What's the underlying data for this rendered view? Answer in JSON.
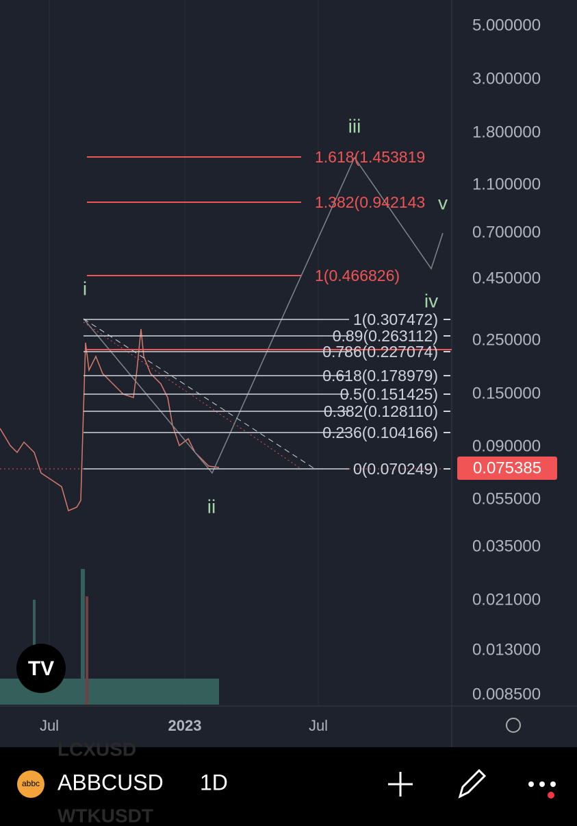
{
  "price_axis": {
    "labels": [
      "5.000000",
      "3.000000",
      "1.800000",
      "1.100000",
      "0.700000",
      "0.450000",
      "0.250000",
      "0.150000",
      "0.090000",
      "0.055000",
      "0.035000",
      "0.021000",
      "0.013000",
      "0.008500"
    ],
    "last_price": "0.075385"
  },
  "time_axis": {
    "labels": [
      "Jul",
      "2023",
      "Jul"
    ]
  },
  "wave_labels": [
    "i",
    "ii",
    "iii",
    "iv",
    "v"
  ],
  "fib_extension": {
    "levels": [
      "1.618(1.453819",
      "1.382(0.942143",
      "1(0.466826)"
    ]
  },
  "fib_retracement": {
    "levels": [
      "1(0.307472)",
      "0.89(0.263112)",
      "0.786(0.227074)",
      "0.618(0.178979)",
      "0.5(0.151425)",
      "0.382(0.128110)",
      "0.236(0.104166)",
      "0(0.070249)"
    ]
  },
  "watchlist_ghost": [
    "LCXUSD",
    "WTKUSDT"
  ],
  "toolbar": {
    "logo": "abbc",
    "symbol": "ABBCUSD",
    "interval": "1D"
  }
}
